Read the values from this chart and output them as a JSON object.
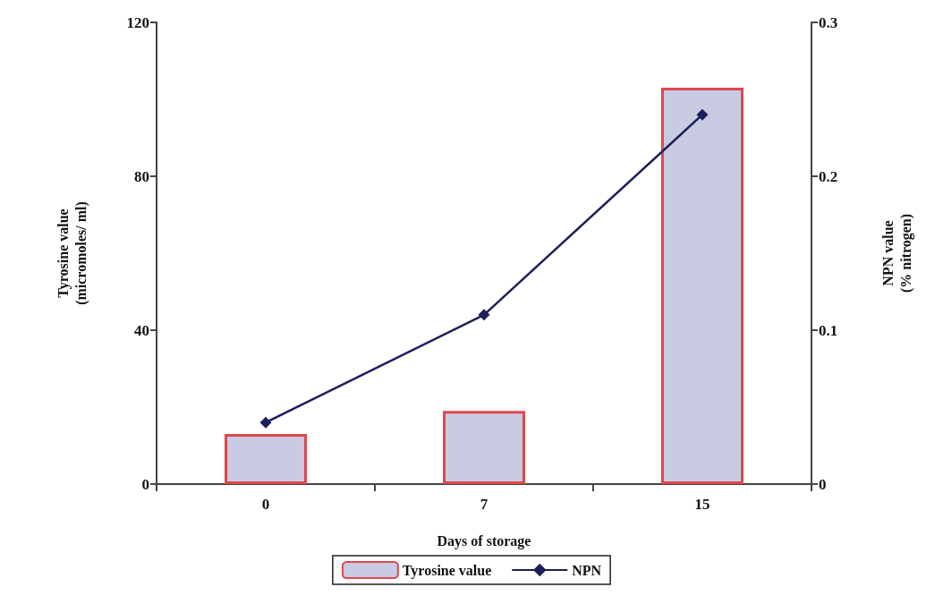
{
  "chart_data": {
    "type": "bar",
    "xlabel": "Days of storage",
    "ylabel": "Tyrosine value\n(micromoles/ ml)",
    "y2label": "NPN value\n(% nitrogen)",
    "categories": [
      "0",
      "7",
      "15"
    ],
    "series": [
      {
        "name": "Tyrosine value",
        "color": "#c9cbe2",
        "values": [
          13,
          19,
          103
        ]
      },
      {
        "name": "NPN",
        "type": "line",
        "axis": "y2",
        "color": "#1b1f5a",
        "values": [
          0.04,
          0.11,
          0.24
        ]
      }
    ],
    "ylim": [
      0,
      120
    ],
    "yticks": [
      0,
      40,
      80,
      120
    ],
    "y2lim": [
      0,
      0.3
    ],
    "y2ticks": [
      0,
      0.1,
      0.2,
      0.3
    ],
    "marker": "diamond",
    "legend": "bottom",
    "grid": false
  }
}
